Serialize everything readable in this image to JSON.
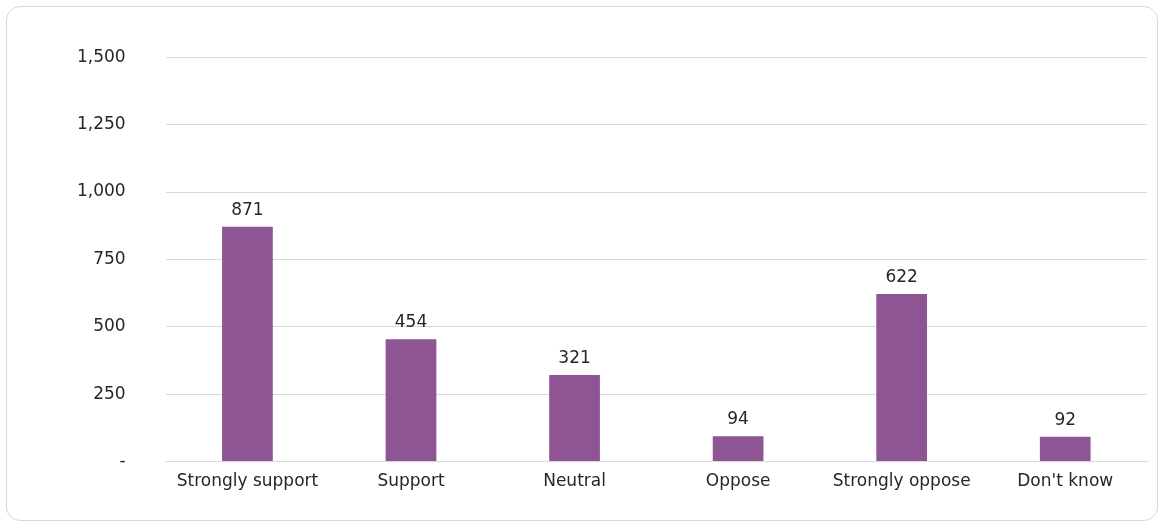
{
  "chart_data": {
    "type": "bar",
    "categories": [
      "Strongly support",
      "Support",
      "Neutral",
      "Oppose",
      "Strongly oppose",
      "Don't know"
    ],
    "values": [
      871,
      454,
      321,
      94,
      622,
      92
    ],
    "color": "#8e5494",
    "ylim": [
      0,
      1500
    ],
    "yticks": [
      {
        "value": 0,
        "label": "-"
      },
      {
        "value": 250,
        "label": "250"
      },
      {
        "value": 500,
        "label": "500"
      },
      {
        "value": 750,
        "label": "750"
      },
      {
        "value": 1000,
        "label": "1,000"
      },
      {
        "value": 1250,
        "label": "1,250"
      },
      {
        "value": 1500,
        "label": "1,500"
      }
    ],
    "grid": "y",
    "legend": false,
    "data_labels": true
  }
}
